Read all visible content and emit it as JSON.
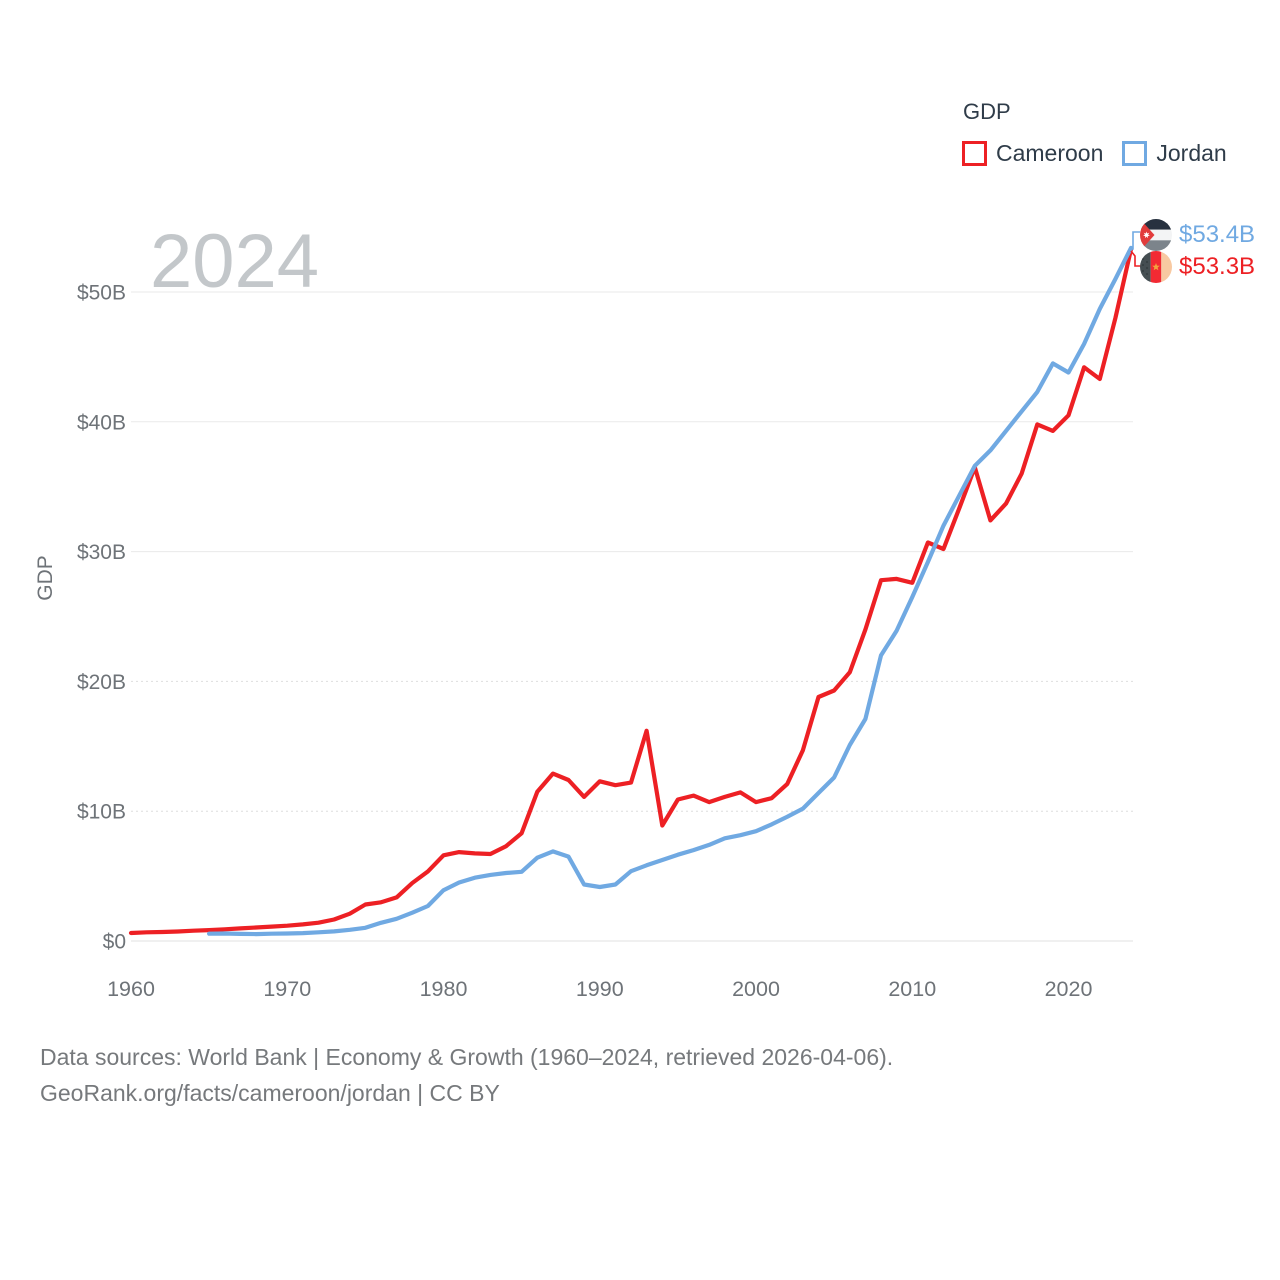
{
  "watermark": "2024",
  "legend": {
    "title": "GDP"
  },
  "footer": {
    "line1": "Data sources: World Bank | Economy & Growth (1960–2024, retrieved 2026-04-06).",
    "line2": "GeoRank.org/facts/cameroon/jordan | CC BY"
  },
  "chart_data": {
    "type": "line",
    "title": "",
    "xlabel": "",
    "ylabel": "GDP",
    "x_range": [
      1960,
      2024
    ],
    "ylim_billions": [
      0,
      55
    ],
    "grid": true,
    "legend_position": "top-right",
    "x_ticks": [
      1960,
      1970,
      1980,
      1990,
      2000,
      2010,
      2020
    ],
    "y_ticks": [
      {
        "value": 0,
        "label": "$0",
        "line": "solid"
      },
      {
        "value": 10,
        "label": "$10B",
        "line": "dotted"
      },
      {
        "value": 20,
        "label": "$20B",
        "line": "dotted"
      },
      {
        "value": 30,
        "label": "$30B",
        "line": "solid"
      },
      {
        "value": 40,
        "label": "$40B",
        "line": "solid"
      },
      {
        "value": 50,
        "label": "$50B",
        "line": "solid"
      }
    ],
    "series": [
      {
        "name": "Cameroon",
        "color": "#ed2024",
        "start_year": 1960,
        "end_label": "$53.3B",
        "values": [
          0.62,
          0.67,
          0.69,
          0.73,
          0.79,
          0.84,
          0.9,
          0.97,
          1.04,
          1.11,
          1.18,
          1.28,
          1.41,
          1.66,
          2.1,
          2.81,
          2.98,
          3.36,
          4.47,
          5.36,
          6.6,
          6.85,
          6.75,
          6.7,
          7.3,
          8.3,
          11.5,
          12.9,
          12.4,
          11.1,
          12.3,
          12.0,
          12.2,
          16.2,
          8.9,
          10.9,
          11.2,
          10.7,
          11.1,
          11.45,
          10.7,
          11.0,
          12.1,
          14.7,
          18.8,
          19.3,
          20.7,
          24.0,
          27.8,
          27.9,
          27.6,
          30.7,
          30.2,
          33.3,
          36.5,
          32.4,
          33.7,
          36.0,
          39.8,
          39.3,
          40.5,
          44.2,
          43.3,
          48.0,
          53.3
        ]
      },
      {
        "name": "Jordan",
        "color": "#70a9e2",
        "start_year": 1965,
        "end_label": "$53.4B",
        "values": [
          0.56,
          0.58,
          0.55,
          0.53,
          0.56,
          0.58,
          0.61,
          0.67,
          0.74,
          0.86,
          1.02,
          1.4,
          1.71,
          2.18,
          2.7,
          3.91,
          4.51,
          4.88,
          5.09,
          5.24,
          5.33,
          6.42,
          6.9,
          6.5,
          4.35,
          4.16,
          4.35,
          5.38,
          5.83,
          6.24,
          6.65,
          7.0,
          7.4,
          7.91,
          8.15,
          8.46,
          8.98,
          9.58,
          10.2,
          11.4,
          12.6,
          15.1,
          17.1,
          22.0,
          23.9,
          26.5,
          29.2,
          32.0,
          34.3,
          36.6,
          37.8,
          39.3,
          40.8,
          42.3,
          44.5,
          43.8,
          46.0,
          48.7,
          51.0,
          53.4
        ]
      }
    ]
  }
}
